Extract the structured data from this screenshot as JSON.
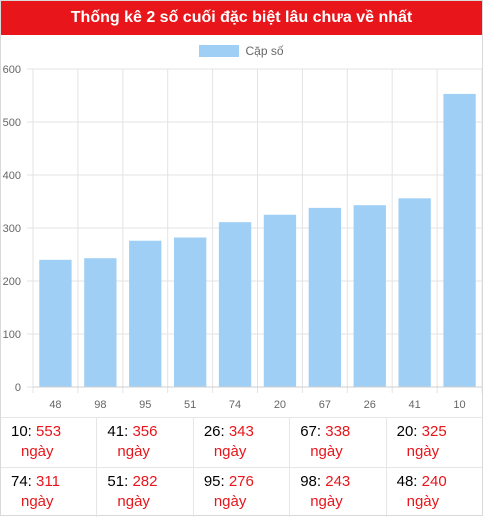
{
  "header": {
    "title": "Thống kê 2 số cuối đặc biệt lâu chưa về nhất"
  },
  "colors": {
    "header_bg": "#e8151b",
    "bar": "#9fcff5",
    "highlight": "#e8151b"
  },
  "chart_data": {
    "type": "bar",
    "categories": [
      "48",
      "98",
      "95",
      "51",
      "74",
      "20",
      "67",
      "26",
      "41",
      "10"
    ],
    "series": [
      {
        "name": "Cặp số",
        "values": [
          240,
          243,
          276,
          282,
          311,
          325,
          338,
          343,
          356,
          553
        ]
      }
    ],
    "ylim": [
      0,
      600
    ],
    "yticks": [
      0,
      100,
      200,
      300,
      400,
      500,
      600
    ],
    "grid": true,
    "legend": "top-center"
  },
  "table": {
    "unit": "ngày",
    "rows": [
      [
        {
          "num": "10",
          "val": "553"
        },
        {
          "num": "41",
          "val": "356"
        },
        {
          "num": "26",
          "val": "343"
        },
        {
          "num": "67",
          "val": "338"
        },
        {
          "num": "20",
          "val": "325"
        }
      ],
      [
        {
          "num": "74",
          "val": "311"
        },
        {
          "num": "51",
          "val": "282"
        },
        {
          "num": "95",
          "val": "276"
        },
        {
          "num": "98",
          "val": "243"
        },
        {
          "num": "48",
          "val": "240"
        }
      ]
    ]
  }
}
